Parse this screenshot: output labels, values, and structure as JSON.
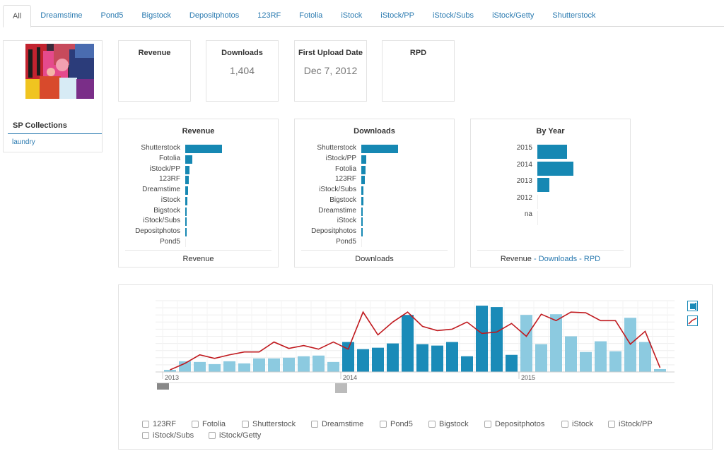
{
  "tabs": [
    "All",
    "Dreamstime",
    "Pond5",
    "Bigstock",
    "Depositphotos",
    "123RF",
    "Fotolia",
    "iStock",
    "iStock/PP",
    "iStock/Subs",
    "iStock/Getty",
    "Shutterstock"
  ],
  "collections": {
    "title": "SP Collections",
    "items": [
      "laundry"
    ]
  },
  "stats": [
    {
      "label": "Revenue",
      "value": ""
    },
    {
      "label": "Downloads",
      "value": "1,404"
    },
    {
      "label": "First Upload Date",
      "value": "Dec 7, 2012"
    },
    {
      "label": "RPD",
      "value": ""
    }
  ],
  "revenue_chart": {
    "title": "Revenue",
    "footer": "Revenue",
    "items": [
      {
        "label": "Shutterstock",
        "value": 100
      },
      {
        "label": "Fotolia",
        "value": 19
      },
      {
        "label": "iStock/PP",
        "value": 12
      },
      {
        "label": "123RF",
        "value": 10
      },
      {
        "label": "Dreamstime",
        "value": 7
      },
      {
        "label": "iStock",
        "value": 6
      },
      {
        "label": "Bigstock",
        "value": 4
      },
      {
        "label": "iStock/Subs",
        "value": 3
      },
      {
        "label": "Depositphotos",
        "value": 3
      },
      {
        "label": "Pond5",
        "value": 0
      }
    ]
  },
  "downloads_chart": {
    "title": "Downloads",
    "footer": "Downloads",
    "items": [
      {
        "label": "Shutterstock",
        "value": 100
      },
      {
        "label": "iStock/PP",
        "value": 13
      },
      {
        "label": "Fotolia",
        "value": 12
      },
      {
        "label": "123RF",
        "value": 10
      },
      {
        "label": "iStock/Subs",
        "value": 6
      },
      {
        "label": "Bigstock",
        "value": 5
      },
      {
        "label": "Dreamstime",
        "value": 4
      },
      {
        "label": "iStock",
        "value": 3
      },
      {
        "label": "Depositphotos",
        "value": 3
      },
      {
        "label": "Pond5",
        "value": 0
      }
    ]
  },
  "year_chart": {
    "title": "By Year",
    "footer_main": "Revenue",
    "footer_links": [
      "Downloads",
      "RPD"
    ],
    "footer_sep": " - ",
    "items": [
      {
        "label": "2015",
        "value": 82
      },
      {
        "label": "2014",
        "value": 100
      },
      {
        "label": "2013",
        "value": 34
      },
      {
        "label": "2012",
        "value": 0
      },
      {
        "label": "na",
        "value": 0
      }
    ]
  },
  "chart_data": {
    "type": "bar",
    "x_tick_labels": [
      "2013",
      "2014",
      "2015"
    ],
    "colors": {
      "2013": "#8ccae0",
      "2014": "#1a8bb8",
      "2015": "#8ccae0",
      "line": "#c0191e"
    },
    "bars": [
      {
        "year": "2013",
        "value": 3
      },
      {
        "year": "2013",
        "value": 15
      },
      {
        "year": "2013",
        "value": 14
      },
      {
        "year": "2013",
        "value": 11
      },
      {
        "year": "2013",
        "value": 15
      },
      {
        "year": "2013",
        "value": 12
      },
      {
        "year": "2013",
        "value": 19
      },
      {
        "year": "2013",
        "value": 19
      },
      {
        "year": "2013",
        "value": 20
      },
      {
        "year": "2013",
        "value": 22
      },
      {
        "year": "2013",
        "value": 23
      },
      {
        "year": "2013",
        "value": 14
      },
      {
        "year": "2014",
        "value": 42
      },
      {
        "year": "2014",
        "value": 32
      },
      {
        "year": "2014",
        "value": 34
      },
      {
        "year": "2014",
        "value": 40
      },
      {
        "year": "2014",
        "value": 80
      },
      {
        "year": "2014",
        "value": 39
      },
      {
        "year": "2014",
        "value": 37
      },
      {
        "year": "2014",
        "value": 42
      },
      {
        "year": "2014",
        "value": 22
      },
      {
        "year": "2014",
        "value": 93
      },
      {
        "year": "2014",
        "value": 91
      },
      {
        "year": "2014",
        "value": 24
      },
      {
        "year": "2015",
        "value": 80
      },
      {
        "year": "2015",
        "value": 39
      },
      {
        "year": "2015",
        "value": 81
      },
      {
        "year": "2015",
        "value": 50
      },
      {
        "year": "2015",
        "value": 28
      },
      {
        "year": "2015",
        "value": 43
      },
      {
        "year": "2015",
        "value": 29
      },
      {
        "year": "2015",
        "value": 76
      },
      {
        "year": "2015",
        "value": 42
      },
      {
        "year": "2015",
        "value": 4
      }
    ],
    "line": [
      3,
      12,
      24,
      19,
      24,
      28,
      28,
      42,
      33,
      37,
      32,
      42,
      32,
      84,
      52,
      70,
      84,
      64,
      58,
      60,
      70,
      54,
      56,
      68,
      50,
      81,
      72,
      84,
      83,
      72,
      72,
      39,
      57,
      6
    ],
    "ylim": [
      0,
      100
    ],
    "grid": true
  },
  "checkboxes": [
    "123RF",
    "Fotolia",
    "Shutterstock",
    "Dreamstime",
    "Pond5",
    "Bigstock",
    "Depositphotos",
    "iStock",
    "iStock/PP",
    "iStock/Subs",
    "iStock/Getty"
  ],
  "legend_icons": [
    "bar-chart-icon",
    "line-chart-icon"
  ]
}
